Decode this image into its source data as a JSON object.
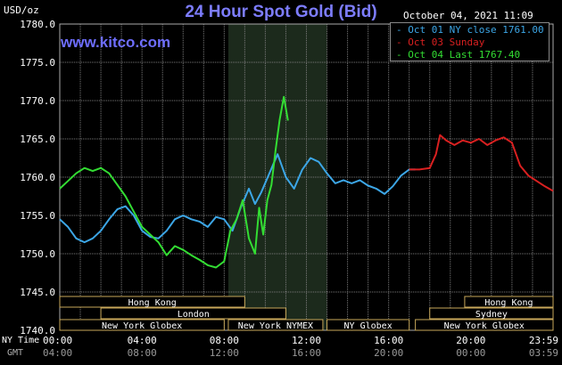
{
  "site": "www.kitco.com",
  "header": {
    "unit": "USD/oz",
    "datestamp": "October 04, 2021 11:09"
  },
  "colors": {
    "background": "#000000",
    "grid": "#7a7a7a",
    "highlight": "#1c2a1c",
    "title": "#7d7dff",
    "url": "#6e6eff",
    "oct01": "#3ca6e6",
    "oct03": "#d92020",
    "oct04": "#33dd33",
    "session_bar": "#c8a85a"
  },
  "legend": [
    {
      "label": "- Oct 01 NY close 1761.00",
      "color": "#3ca6e6"
    },
    {
      "label": "- Oct 03 Sunday",
      "color": "#d92020"
    },
    {
      "label": "- Oct 04 Last 1767.40",
      "color": "#33dd33"
    }
  ],
  "sessions": {
    "row1": [
      {
        "label": "Hong Kong",
        "start": 0,
        "end": 9
      },
      {
        "label": "Hong Kong",
        "start": 19.7,
        "end": 24
      }
    ],
    "row2": [
      {
        "label": "London",
        "start": 2,
        "end": 11
      },
      {
        "label": "Sydney",
        "start": 18,
        "end": 24
      }
    ],
    "row3": [
      {
        "label": "New York Globex",
        "start": 0,
        "end": 8
      },
      {
        "label": "New York NYMEX",
        "start": 8.2,
        "end": 12.8
      },
      {
        "label": "NY Globex",
        "start": 13,
        "end": 17
      },
      {
        "label": "New York Globex",
        "start": 17.3,
        "end": 24
      }
    ]
  },
  "chart_data": {
    "type": "line",
    "title": "24 Hour Spot Gold (Bid)",
    "ylabel": "USD/oz",
    "xlabel_rows": [
      "NY Time",
      "GMT"
    ],
    "xlim": [
      0,
      24
    ],
    "ylim": [
      1740,
      1780
    ],
    "yticks": [
      1740,
      1745,
      1750,
      1755,
      1760,
      1765,
      1770,
      1775,
      1780
    ],
    "ytick_labels": [
      "1740.0",
      "1745.0",
      "1750.0",
      "1755.0",
      "1760.0",
      "1765.0",
      "1770.0",
      "1775.0",
      "1780.0"
    ],
    "xticks": [
      0,
      4,
      8,
      12,
      16,
      20,
      24
    ],
    "xtick_labels": [
      "00:00",
      "04:00",
      "08:00",
      "12:00",
      "16:00",
      "20:00",
      "23:59"
    ],
    "gmt_tick_labels": [
      "04:00",
      "08:00",
      "12:00",
      "16:00",
      "20:00",
      "00:00",
      "03:59"
    ],
    "highlight_range": [
      8.2,
      13.0
    ],
    "grid": true,
    "legend_position": "top-right",
    "series": [
      {
        "name": "Oct 01 NY close 1761.00",
        "x": [
          0,
          0.4,
          0.8,
          1.2,
          1.6,
          2.0,
          2.4,
          2.8,
          3.2,
          3.6,
          4.0,
          4.4,
          4.8,
          5.2,
          5.6,
          6.0,
          6.4,
          6.8,
          7.2,
          7.6,
          8.0,
          8.4,
          8.8,
          9.2,
          9.5,
          9.8,
          10.2,
          10.6,
          11.0,
          11.4,
          11.8,
          12.2,
          12.6,
          13.0,
          13.4,
          13.8,
          14.2,
          14.6,
          15.0,
          15.4,
          15.8,
          16.2,
          16.6,
          17.0,
          17.3
        ],
        "y": [
          1754.5,
          1753.5,
          1752.0,
          1751.5,
          1752.0,
          1753.0,
          1754.5,
          1755.8,
          1756.2,
          1755.0,
          1753.0,
          1752.2,
          1752.0,
          1753.0,
          1754.5,
          1755.0,
          1754.5,
          1754.2,
          1753.5,
          1754.8,
          1754.5,
          1753.0,
          1756.0,
          1758.5,
          1756.5,
          1758.0,
          1760.5,
          1763.0,
          1760.0,
          1758.5,
          1761.0,
          1762.5,
          1762.0,
          1760.5,
          1759.2,
          1759.6,
          1759.2,
          1759.6,
          1758.9,
          1758.5,
          1757.8,
          1758.8,
          1760.2,
          1761.0,
          1761.0
        ]
      },
      {
        "name": "Oct 03 Sunday",
        "x": [
          17.0,
          17.5,
          18.0,
          18.3,
          18.5,
          18.8,
          19.2,
          19.6,
          20.0,
          20.4,
          20.8,
          21.2,
          21.6,
          22.0,
          22.4,
          22.8,
          23.2,
          23.6,
          24.0
        ],
        "y": [
          1761.0,
          1761.0,
          1761.2,
          1763.0,
          1765.5,
          1764.8,
          1764.2,
          1764.8,
          1764.5,
          1765.0,
          1764.2,
          1764.8,
          1765.2,
          1764.5,
          1761.5,
          1760.2,
          1759.5,
          1758.8,
          1758.2
        ]
      },
      {
        "name": "Oct 04 Last 1767.40",
        "x": [
          0,
          0.4,
          0.8,
          1.2,
          1.6,
          2.0,
          2.4,
          2.8,
          3.2,
          3.6,
          4.0,
          4.4,
          4.8,
          5.2,
          5.6,
          6.0,
          6.4,
          6.8,
          7.2,
          7.6,
          8.0,
          8.3,
          8.6,
          8.9,
          9.2,
          9.5,
          9.7,
          9.9,
          10.1,
          10.3,
          10.5,
          10.7,
          10.9,
          11.1
        ],
        "y": [
          1758.5,
          1759.5,
          1760.5,
          1761.2,
          1760.8,
          1761.2,
          1760.5,
          1759.0,
          1757.5,
          1755.5,
          1753.5,
          1752.5,
          1751.5,
          1749.8,
          1751.0,
          1750.5,
          1749.8,
          1749.2,
          1748.5,
          1748.2,
          1749.0,
          1753.0,
          1754.5,
          1757.0,
          1752.0,
          1750.0,
          1756.0,
          1752.5,
          1757.0,
          1759.0,
          1763.5,
          1767.5,
          1770.5,
          1767.4
        ]
      }
    ]
  }
}
